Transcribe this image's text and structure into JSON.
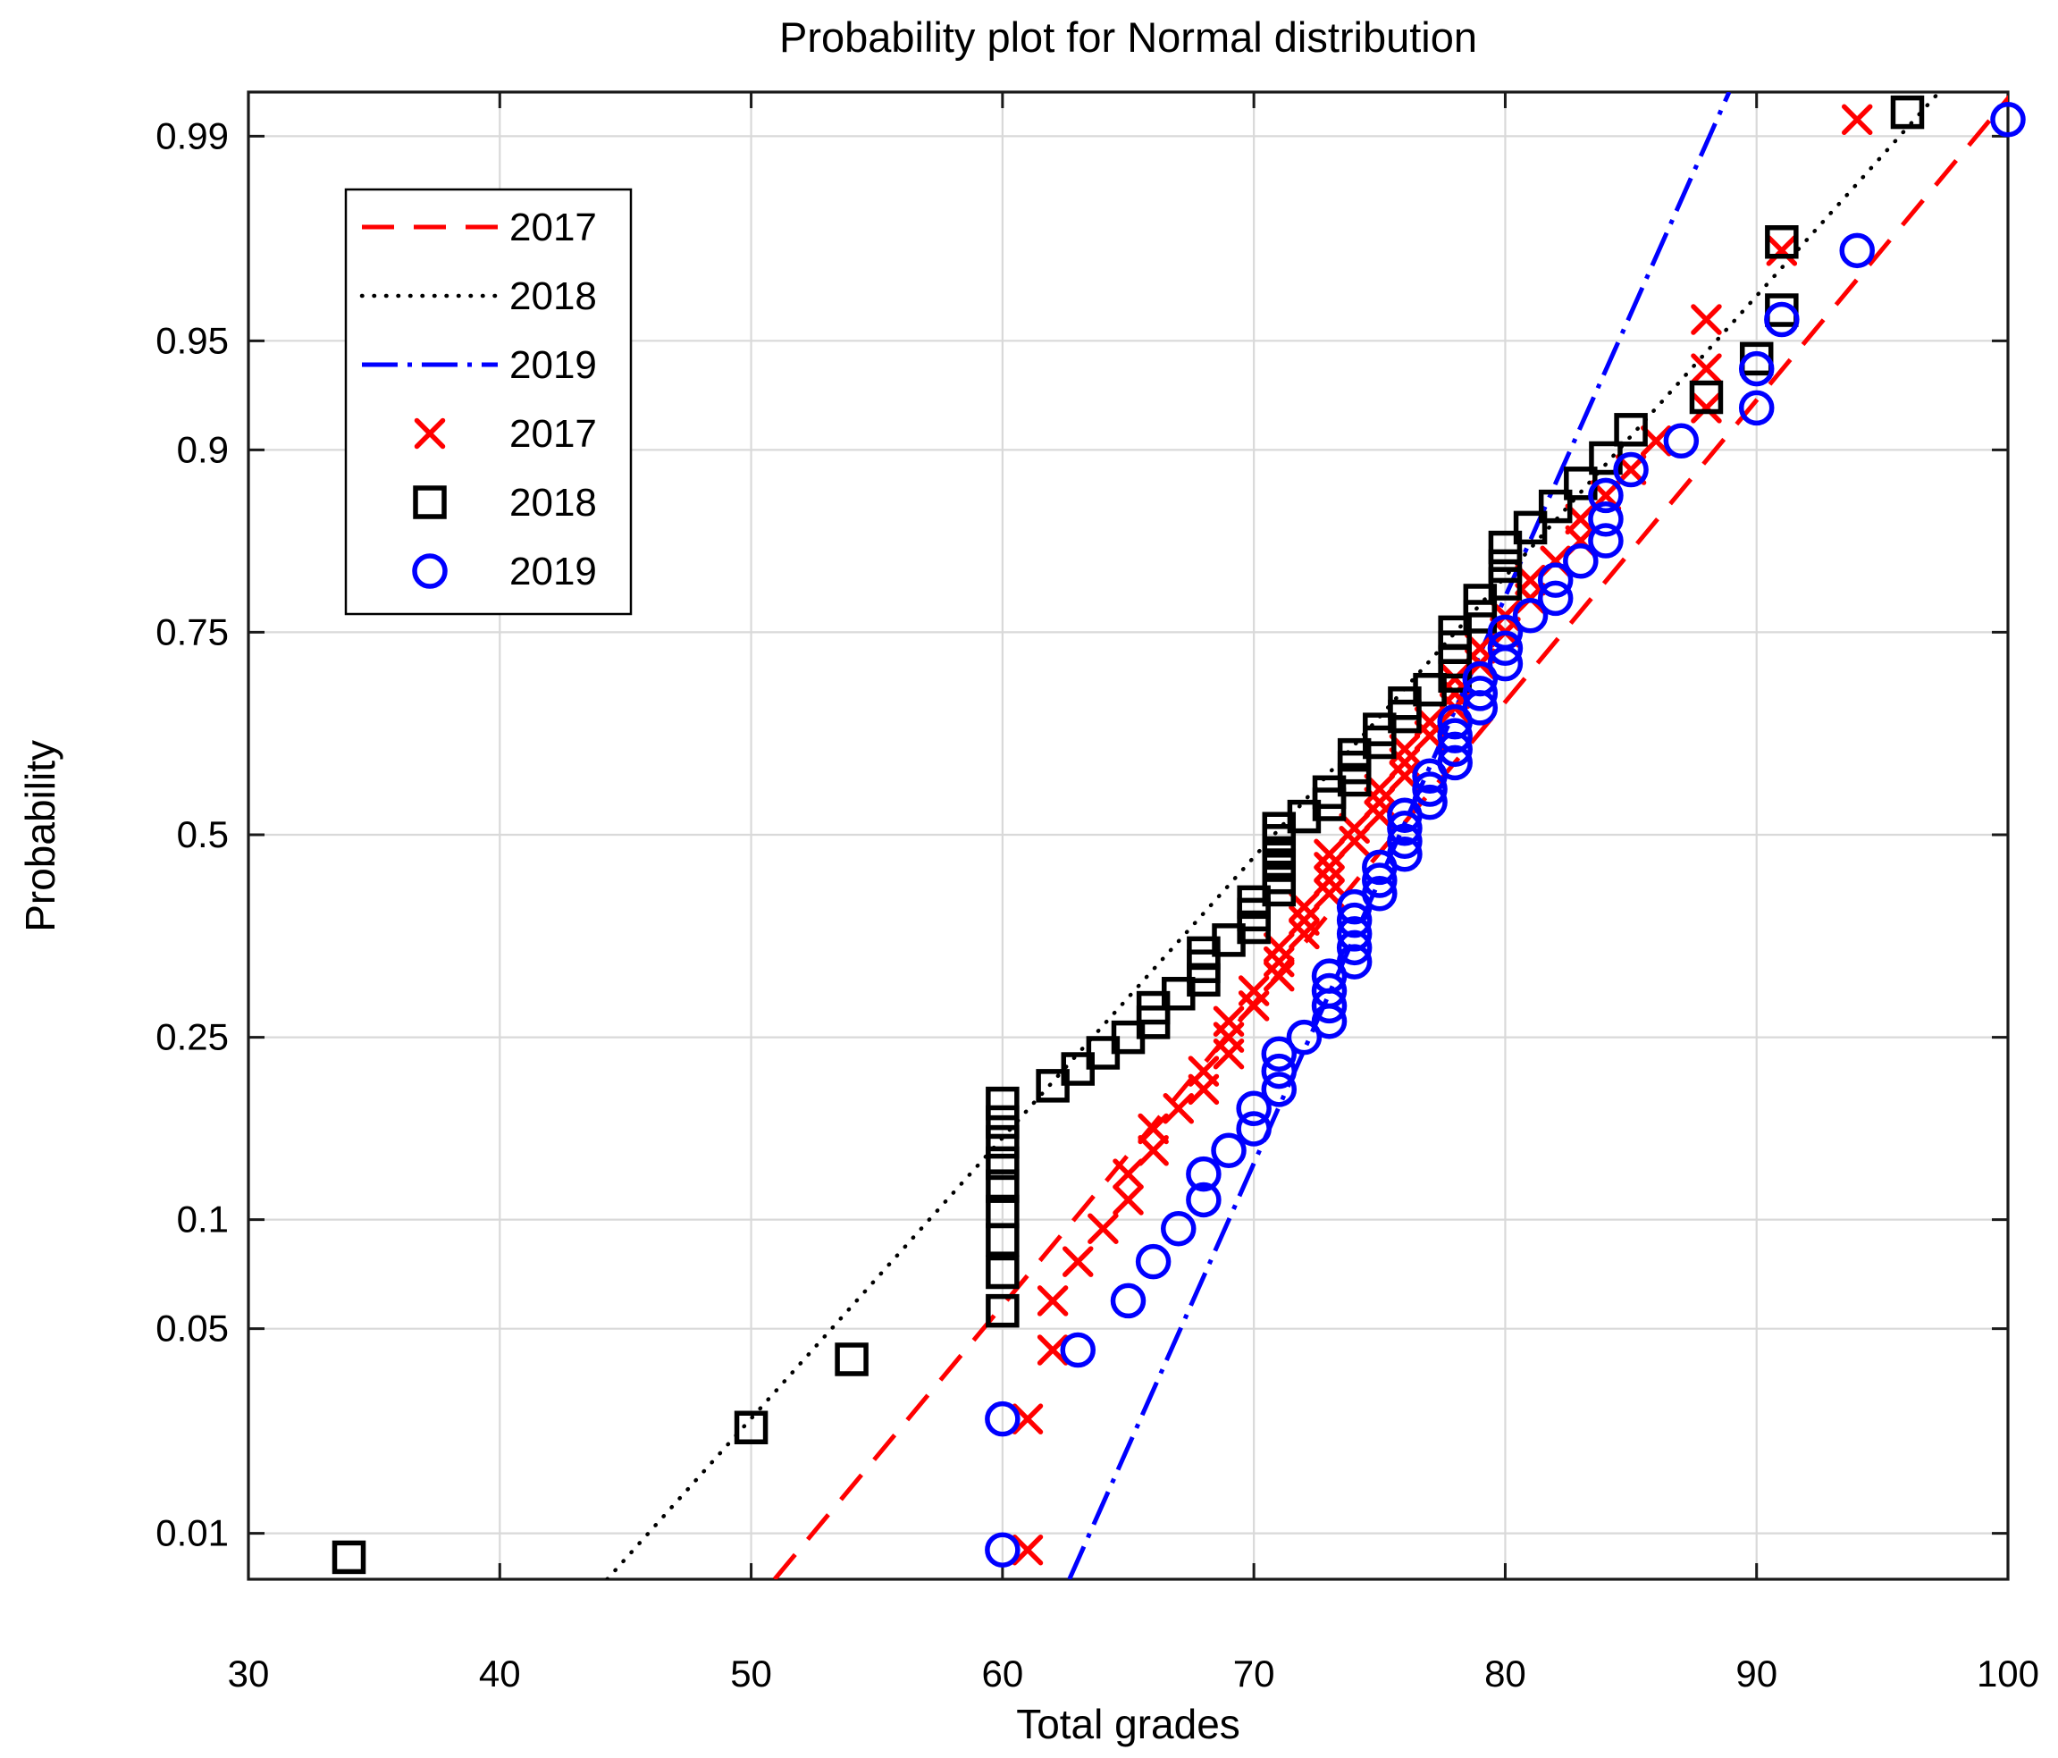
{
  "title": "Probability plot for Normal distribution",
  "axes": {
    "x": {
      "label": "Total grades",
      "min": 30,
      "max": 100,
      "ticks": [
        30,
        40,
        50,
        60,
        70,
        80,
        90,
        100
      ]
    },
    "y": {
      "label": "Probability",
      "scale": "normal-probability",
      "ticks": [
        {
          "value": 0.01,
          "label": "0.01"
        },
        {
          "value": 0.05,
          "label": "0.05"
        },
        {
          "value": 0.1,
          "label": "0.1"
        },
        {
          "value": 0.25,
          "label": "0.25"
        },
        {
          "value": 0.5,
          "label": "0.5"
        },
        {
          "value": 0.75,
          "label": "0.75"
        },
        {
          "value": 0.9,
          "label": "0.9"
        },
        {
          "value": 0.95,
          "label": "0.95"
        },
        {
          "value": 0.99,
          "label": "0.99"
        }
      ]
    }
  },
  "legend": {
    "position": "top-left",
    "entries": [
      {
        "label": "2017",
        "swatch": "line",
        "series": 0
      },
      {
        "label": "2018",
        "swatch": "line",
        "series": 1
      },
      {
        "label": "2019",
        "swatch": "line",
        "series": 2
      },
      {
        "label": "2017",
        "swatch": "marker",
        "series": 0
      },
      {
        "label": "2018",
        "swatch": "marker",
        "series": 1
      },
      {
        "label": "2019",
        "swatch": "marker",
        "series": 2
      }
    ]
  },
  "chart_data": {
    "type": "scatter",
    "subtype": "normal-probability-plot",
    "title": "Probability plot for Normal distribution",
    "xlabel": "Total grades",
    "ylabel": "Probability",
    "xlim": [
      30,
      100
    ],
    "prob_lim": [
      0.0066,
      0.9933
    ],
    "grid": true,
    "probability_rule": "p_i = (i - 0.5) / n over each series' sorted grades",
    "series": [
      {
        "name": "2017",
        "color": "#ff0000",
        "marker": "x",
        "line_style": "dashed",
        "fit_line": {
          "mu": 75.6,
          "sigma": 9.95
        },
        "grades": [
          61,
          61,
          62,
          62,
          63,
          64,
          65,
          65,
          66,
          66,
          67,
          68,
          68,
          69,
          69,
          69,
          70,
          70,
          71,
          71,
          71,
          72,
          72,
          72,
          73,
          73,
          73,
          73,
          74,
          74,
          75,
          75,
          75,
          76,
          76,
          76,
          77,
          77,
          78,
          78,
          78,
          79,
          79,
          80,
          80,
          81,
          81,
          82,
          83,
          83,
          84,
          85,
          86,
          88,
          88,
          88,
          91,
          94
        ]
      },
      {
        "name": "2018",
        "color": "#000000",
        "marker": "square",
        "line_style": "dotted",
        "fit_line": {
          "mu": 70.8,
          "sigma": 10.7
        },
        "grades": [
          34,
          50,
          54,
          60,
          60,
          60,
          60,
          60,
          60,
          60,
          60,
          60,
          62,
          63,
          64,
          65,
          66,
          66,
          67,
          68,
          68,
          68,
          69,
          70,
          70,
          70,
          71,
          71,
          71,
          71,
          71,
          71,
          72,
          73,
          73,
          74,
          74,
          74,
          75,
          75,
          76,
          76,
          77,
          78,
          78,
          78,
          78,
          79,
          79,
          80,
          80,
          80,
          81,
          82,
          83,
          84,
          85,
          88,
          90,
          91,
          91,
          96
        ]
      },
      {
        "name": "2019",
        "color": "#0000ff",
        "marker": "circle",
        "line_style": "dashdot",
        "fit_line": {
          "mu": 75.8,
          "sigma": 5.3
        },
        "grades": [
          60,
          60,
          63,
          65,
          66,
          67,
          68,
          68,
          69,
          70,
          70,
          71,
          71,
          71,
          72,
          73,
          73,
          73,
          73,
          74,
          74,
          74,
          74,
          74,
          75,
          75,
          75,
          76,
          76,
          76,
          76,
          77,
          77,
          77,
          78,
          78,
          78,
          78,
          79,
          79,
          79,
          80,
          80,
          80,
          81,
          82,
          82,
          83,
          84,
          84,
          84,
          85,
          87,
          90,
          90,
          91,
          94,
          100
        ]
      }
    ]
  },
  "colors": {
    "grid": "#d9d9d9",
    "axis": "#1a1a1a",
    "background": "#ffffff"
  }
}
